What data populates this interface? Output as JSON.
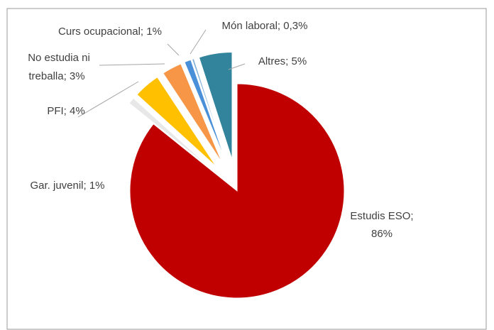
{
  "chart_data": {
    "type": "pie",
    "labels": [
      [
        "Estudis ESO;",
        "86%"
      ],
      [
        "Gar. juvenil; 1%"
      ],
      [
        "PFI; 4%"
      ],
      [
        "No estudia  ni",
        "treballa; 3%"
      ],
      [
        "Curs ocupacional; 1%"
      ],
      [
        "Món laboral; 0,3%"
      ],
      [
        "Altres; 5%"
      ]
    ],
    "values": [
      86,
      1,
      4,
      3,
      1,
      0.3,
      5
    ],
    "colors": [
      "#c00000",
      "#e8e8e8",
      "#ffc000",
      "#f79646",
      "#4a90d9",
      "#7fb2d9",
      "#31849b"
    ]
  }
}
